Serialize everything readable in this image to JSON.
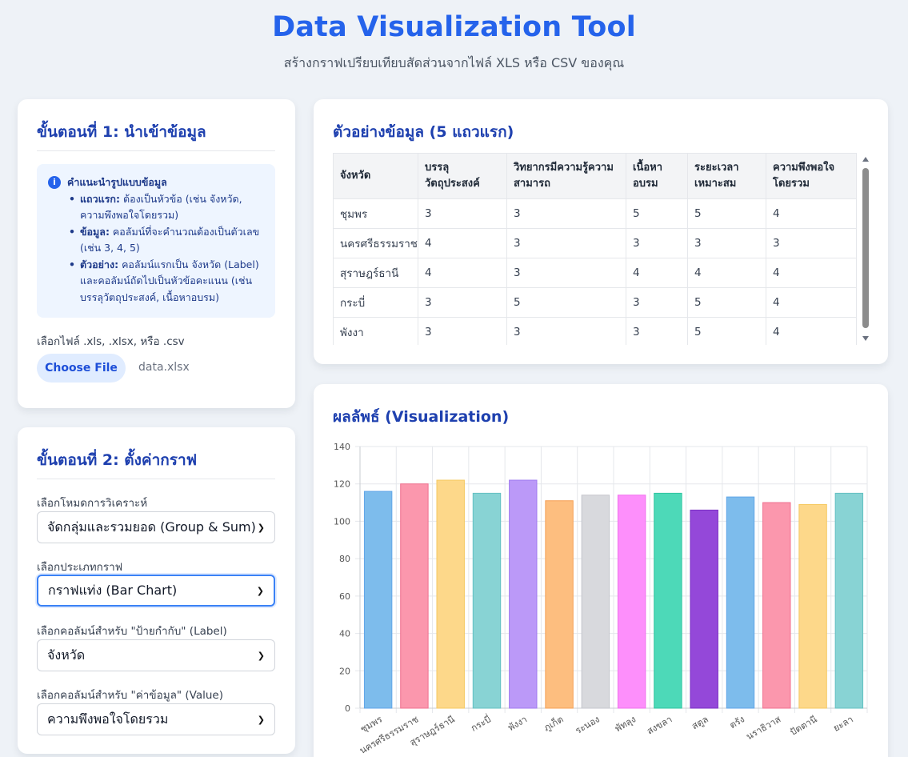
{
  "header": {
    "title": "Data Visualization Tool",
    "subtitle": "สร้างกราฟเปรียบเทียบสัดส่วนจากไฟล์ XLS หรือ CSV ของคุณ"
  },
  "step1": {
    "title": "ขั้นตอนที่ 1: นำเข้าข้อมูล",
    "tip_title": "คำแนะนำรูปแบบข้อมูล",
    "tips": [
      {
        "label": "แถวแรก:",
        "text": " ต้องเป็นหัวข้อ (เช่น จังหวัด, ความพึงพอใจโดยรวม)"
      },
      {
        "label": "ข้อมูล:",
        "text": " คอลัมน์ที่จะคำนวณต้องเป็นตัวเลข (เช่น 3, 4, 5)"
      },
      {
        "label": "ตัวอย่าง:",
        "text": " คอลัมน์แรกเป็น จังหวัด (Label) และคอลัมน์ถัดไปเป็นหัวข้อคะแนน (เช่น บรรลุวัตถุประสงค์, เนื้อหาอบรม)"
      }
    ],
    "file_label": "เลือกไฟล์ .xls, .xlsx, หรือ .csv",
    "choose_button": "Choose File",
    "file_name": "data.xlsx"
  },
  "step2": {
    "title": "ขั้นตอนที่ 2: ตั้งค่ากราฟ",
    "mode_label": "เลือกโหมดการวิเคราะห์",
    "mode_value": "จัดกลุ่มและรวมยอด (Group & Sum)",
    "chart_type_label": "เลือกประเภทกราฟ",
    "chart_type_value": "กราฟแท่ง (Bar Chart)",
    "label_col_label": "เลือกคอลัมน์สำหรับ \"ป้ายกำกับ\" (Label)",
    "label_col_value": "จังหวัด",
    "value_col_label": "เลือกคอลัมน์สำหรับ \"ค่าข้อมูล\" (Value)",
    "value_col_value": "ความพึงพอใจโดยรวม"
  },
  "preview": {
    "title": "ตัวอย่างข้อมูล (5 แถวแรก)",
    "headers": [
      "จังหวัด",
      "บรรลุวัตถุประสงค์",
      "วิทยากรมีความรู้ความสามารถ",
      "เนื้อหาอบรม",
      "ระยะเวลาเหมาะสม",
      "ความพึงพอใจโดยรวม"
    ],
    "rows": [
      [
        "ชุมพร",
        "3",
        "3",
        "5",
        "5",
        "4"
      ],
      [
        "นครศรีธรรมราช",
        "4",
        "3",
        "3",
        "3",
        "3"
      ],
      [
        "สุราษฎร์ธานี",
        "4",
        "3",
        "4",
        "4",
        "4"
      ],
      [
        "กระบี่",
        "3",
        "5",
        "3",
        "5",
        "4"
      ],
      [
        "พังงา",
        "3",
        "3",
        "3",
        "5",
        "4"
      ]
    ]
  },
  "result": {
    "title": "ผลลัพธ์ (Visualization)"
  },
  "chart_data": {
    "type": "bar",
    "categories": [
      "ชุมพร",
      "นครศรีธรรมราช",
      "สุราษฎร์ธานี",
      "กระบี่",
      "พังงา",
      "ภูเก็ต",
      "ระนอง",
      "พัทลุง",
      "สงขลา",
      "สตูล",
      "ตรัง",
      "นราธิวาส",
      "ปัตตานี",
      "ยะลา"
    ],
    "values": [
      116,
      120,
      122,
      115,
      122,
      111,
      114,
      114,
      115,
      106,
      113,
      110,
      109,
      115
    ],
    "colors": [
      "#7dbcec",
      "#fb97ad",
      "#fdd88a",
      "#88d3d4",
      "#bb99f8",
      "#fdbe7f",
      "#d8d9dd",
      "#fd8ffb",
      "#4dd9b8",
      "#9448d9",
      "#7dbcec",
      "#fb97ad",
      "#fdd88a",
      "#88d3d4"
    ],
    "borders": [
      "#60a5e8",
      "#f0708f",
      "#f5c860",
      "#63c0c2",
      "#a07aef",
      "#f5a055",
      "#c4c6cc",
      "#f070ee",
      "#2fc4a0",
      "#7a2fc4",
      "#60a5e8",
      "#f0708f",
      "#f5c860",
      "#63c0c2"
    ],
    "ylim": [
      0,
      140
    ],
    "yticks": [
      0,
      20,
      40,
      60,
      80,
      100,
      120,
      140
    ],
    "grid": true
  }
}
